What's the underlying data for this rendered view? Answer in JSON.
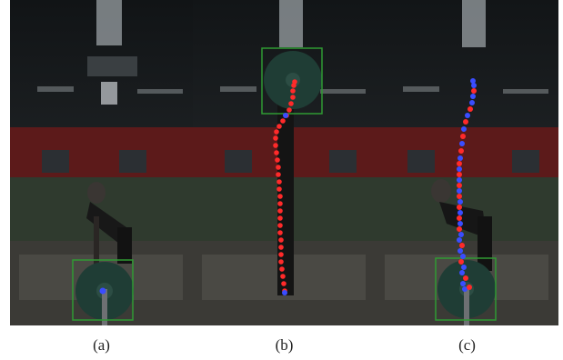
{
  "figure": {
    "panels": [
      {
        "id": "a",
        "caption": "(a)"
      },
      {
        "id": "b",
        "caption": "(b)"
      },
      {
        "id": "c",
        "caption": "(c)"
      }
    ]
  },
  "colors": {
    "trajectory_red": "#ff2a2a",
    "trajectory_blue": "#3a4dff",
    "bounding_box": "#2f9a33",
    "gym_wall_red": "#8b1e1e",
    "floor_green": "#3f5a3a"
  }
}
